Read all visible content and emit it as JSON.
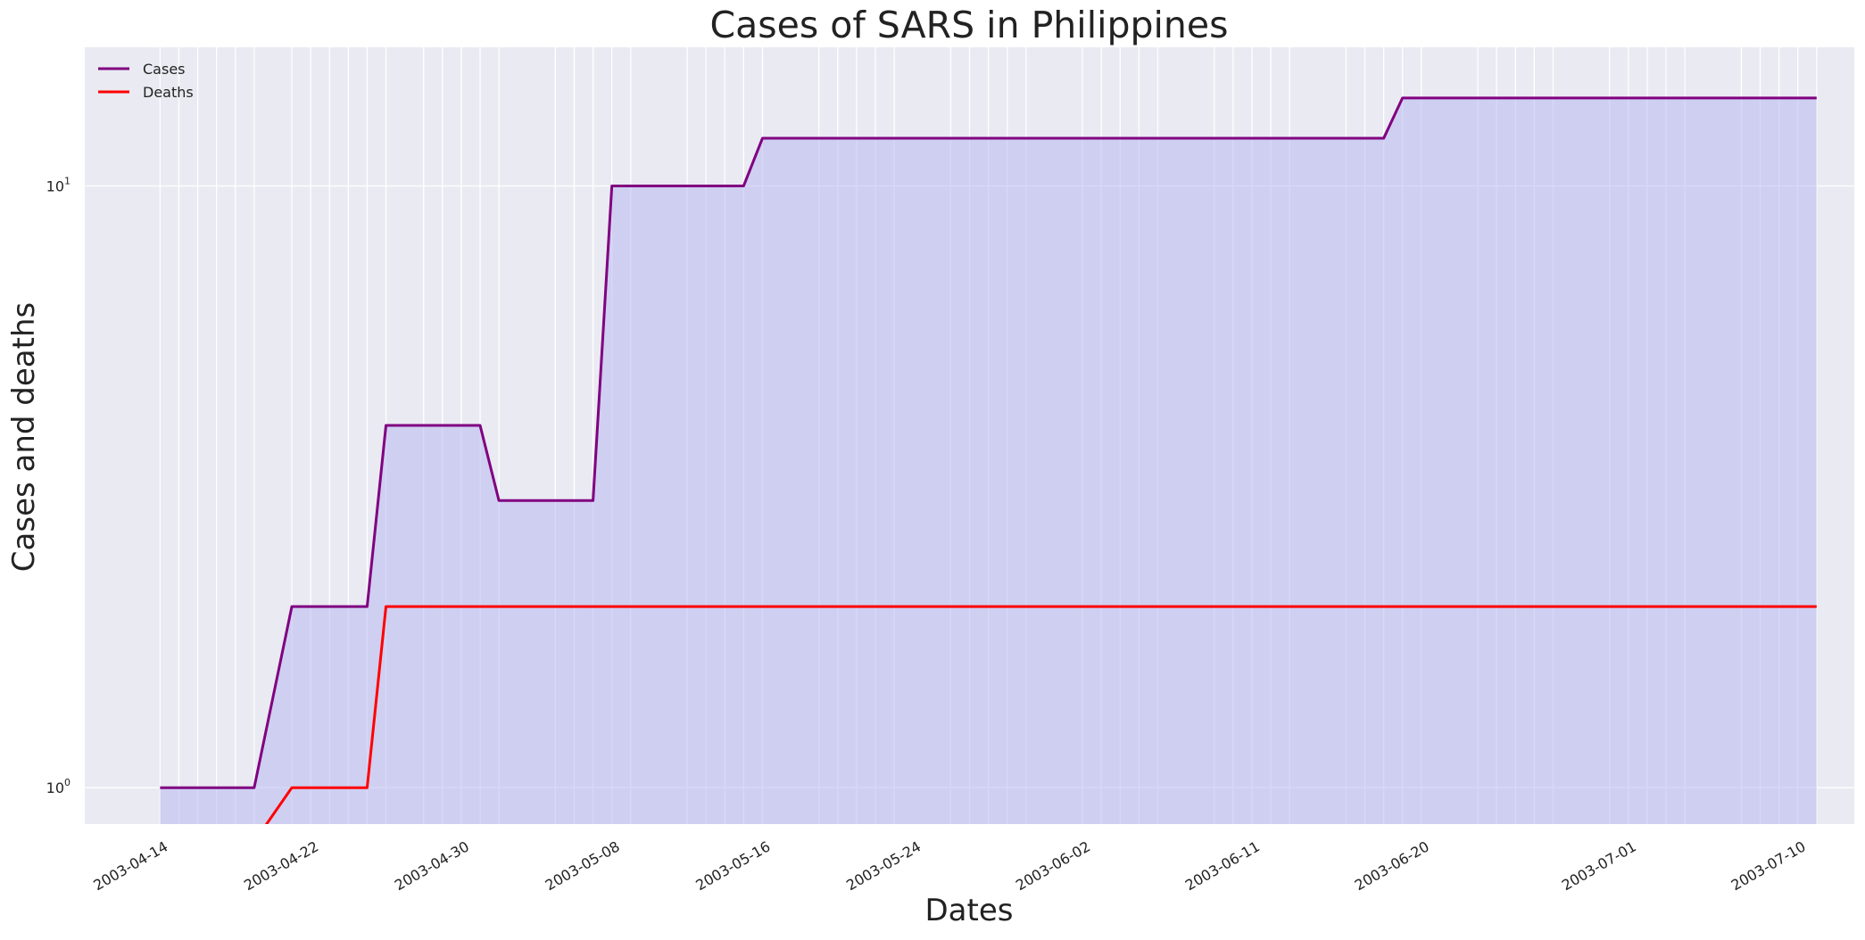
{
  "chart_data": {
    "type": "line",
    "title": "Cases of SARS in Philippines",
    "xlabel": "Dates",
    "ylabel": "Cases and deaths",
    "yscale": "log",
    "ylim": [
      0.87,
      17
    ],
    "xlim": [
      "2003-04-10",
      "2003-07-13"
    ],
    "grid": true,
    "legend_position": "top-left",
    "x_ticks": [
      "2003-04-14",
      "2003-04-22",
      "2003-04-30",
      "2003-05-08",
      "2003-05-16",
      "2003-05-24",
      "2003-06-02",
      "2003-06-11",
      "2003-06-20",
      "2003-07-01",
      "2003-07-10"
    ],
    "y_ticks": [
      {
        "value": 1,
        "base": "10",
        "exp": "0"
      },
      {
        "value": 10,
        "base": "10",
        "exp": "1"
      }
    ],
    "x": [
      "2003-04-14",
      "2003-04-15",
      "2003-04-16",
      "2003-04-17",
      "2003-04-18",
      "2003-04-19",
      "2003-04-21",
      "2003-04-22",
      "2003-04-23",
      "2003-04-24",
      "2003-04-25",
      "2003-04-26",
      "2003-04-28",
      "2003-04-29",
      "2003-04-30",
      "2003-05-01",
      "2003-05-02",
      "2003-05-05",
      "2003-05-06",
      "2003-05-07",
      "2003-05-08",
      "2003-05-09",
      "2003-05-12",
      "2003-05-13",
      "2003-05-14",
      "2003-05-15",
      "2003-05-16",
      "2003-05-19",
      "2003-05-20",
      "2003-05-21",
      "2003-05-22",
      "2003-05-23",
      "2003-05-26",
      "2003-05-27",
      "2003-05-28",
      "2003-05-29",
      "2003-05-30",
      "2003-06-02",
      "2003-06-03",
      "2003-06-04",
      "2003-06-05",
      "2003-06-06",
      "2003-06-09",
      "2003-06-10",
      "2003-06-11",
      "2003-06-12",
      "2003-06-13",
      "2003-06-16",
      "2003-06-17",
      "2003-06-18",
      "2003-06-19",
      "2003-06-20",
      "2003-06-23",
      "2003-06-24",
      "2003-06-25",
      "2003-06-26",
      "2003-06-27",
      "2003-06-30",
      "2003-07-01",
      "2003-07-02",
      "2003-07-03",
      "2003-07-04",
      "2003-07-07",
      "2003-07-08",
      "2003-07-09",
      "2003-07-10",
      "2003-07-11"
    ],
    "series": [
      {
        "name": "Cases",
        "color": "#800080",
        "values": [
          1,
          1,
          1,
          1,
          1,
          1,
          2,
          2,
          2,
          2,
          2,
          4,
          4,
          4,
          4,
          4,
          3,
          3,
          3,
          3,
          10,
          10,
          10,
          10,
          10,
          10,
          12,
          12,
          12,
          12,
          12,
          12,
          12,
          12,
          12,
          12,
          12,
          12,
          12,
          12,
          12,
          12,
          12,
          12,
          12,
          12,
          12,
          12,
          12,
          12,
          14,
          14,
          14,
          14,
          14,
          14,
          14,
          14,
          14,
          14,
          14,
          14,
          14,
          14,
          14,
          14,
          14
        ]
      },
      {
        "name": "Deaths",
        "color": "#ff0000",
        "values": [
          0,
          0,
          0,
          0,
          0,
          0,
          1,
          1,
          1,
          1,
          1,
          2,
          2,
          2,
          2,
          2,
          2,
          2,
          2,
          2,
          2,
          2,
          2,
          2,
          2,
          2,
          2,
          2,
          2,
          2,
          2,
          2,
          2,
          2,
          2,
          2,
          2,
          2,
          2,
          2,
          2,
          2,
          2,
          2,
          2,
          2,
          2,
          2,
          2,
          2,
          2,
          2,
          2,
          2,
          2,
          2,
          2,
          2,
          2,
          2,
          2,
          2,
          2,
          2,
          2,
          2,
          2
        ]
      }
    ],
    "fill_color": "#b8b8f0",
    "plot_background": "#eaeaf2"
  }
}
